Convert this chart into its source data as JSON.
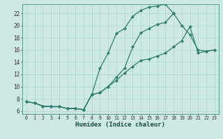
{
  "xlabel": "Humidex (Indice chaleur)",
  "bg_color": "#cde8e5",
  "line_color": "#2e7d6e",
  "grid_color": "#aed4ce",
  "xlim": [
    -0.5,
    23.5
  ],
  "ylim": [
    5.5,
    23.5
  ],
  "xticks": [
    0,
    1,
    2,
    3,
    4,
    5,
    6,
    7,
    8,
    9,
    10,
    11,
    12,
    13,
    14,
    15,
    16,
    17,
    18,
    19,
    20,
    21,
    22,
    23
  ],
  "yticks": [
    6,
    8,
    10,
    12,
    14,
    16,
    18,
    20,
    22
  ],
  "line1_x": [
    0,
    1,
    2,
    3,
    4,
    5,
    6,
    7,
    8,
    9,
    10,
    11,
    12,
    13,
    14,
    15,
    16,
    17,
    18,
    19,
    20,
    21,
    22,
    23
  ],
  "line1_y": [
    7.5,
    7.3,
    6.8,
    6.7,
    6.7,
    6.4,
    6.4,
    6.2,
    8.7,
    13.0,
    15.5,
    18.7,
    19.5,
    21.5,
    22.5,
    23.0,
    23.2,
    23.5,
    22.0,
    null,
    null,
    null,
    null,
    null
  ],
  "line2_x": [
    0,
    1,
    2,
    3,
    4,
    5,
    6,
    7,
    8,
    9,
    10,
    11,
    12,
    13,
    14,
    15,
    16,
    17,
    18,
    19,
    20,
    21,
    22,
    23
  ],
  "line2_y": [
    7.5,
    7.3,
    6.8,
    6.7,
    6.7,
    6.4,
    6.4,
    6.2,
    8.7,
    9.0,
    10.0,
    11.5,
    13.0,
    16.5,
    18.8,
    19.5,
    20.2,
    20.5,
    22.0,
    20.0,
    18.5,
    16.0,
    15.8,
    16.0
  ],
  "line3_x": [
    0,
    1,
    2,
    3,
    4,
    5,
    6,
    7,
    8,
    9,
    10,
    11,
    12,
    13,
    14,
    15,
    16,
    17,
    18,
    19,
    20,
    21,
    22,
    23
  ],
  "line3_y": [
    7.5,
    7.3,
    6.8,
    6.7,
    6.7,
    6.4,
    6.4,
    6.2,
    8.7,
    9.0,
    10.0,
    11.0,
    12.2,
    13.3,
    14.3,
    14.5,
    15.0,
    15.5,
    16.5,
    17.5,
    19.8,
    15.5,
    15.8,
    16.0
  ]
}
